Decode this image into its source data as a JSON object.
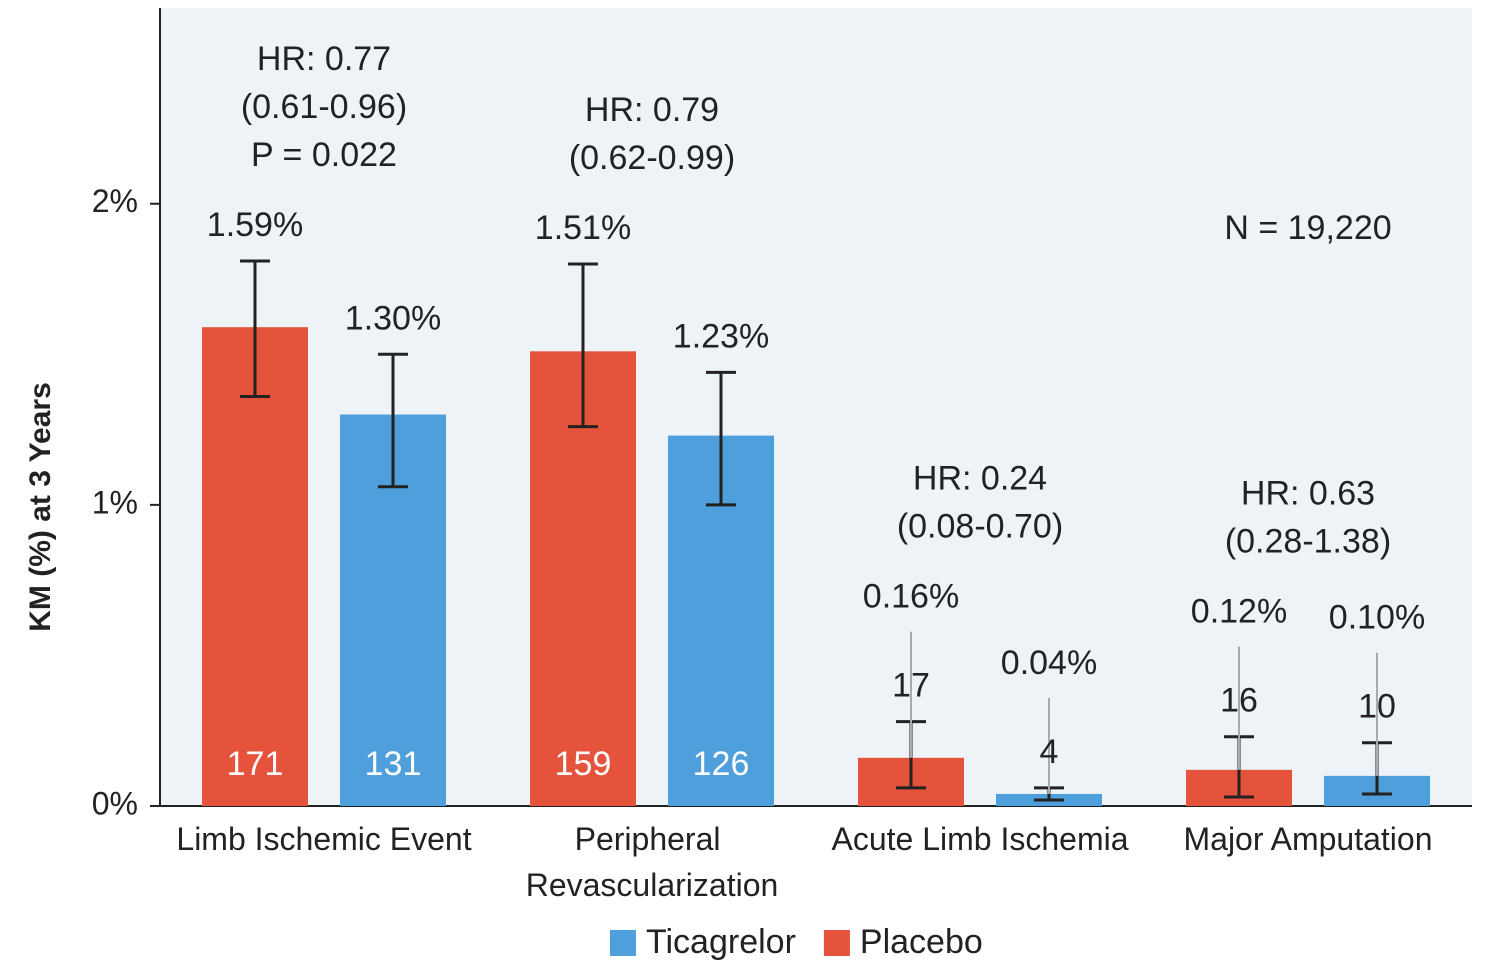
{
  "chart_data": {
    "type": "bar",
    "y_label": "KM (%) at 3 Years",
    "categories": [
      "Limb Ischemic Event",
      "Peripheral Revascularization",
      "Acute Limb Ischemia",
      "Major Amputation"
    ],
    "series": [
      {
        "name": "Placebo",
        "color": "#e5533d",
        "values": [
          1.59,
          1.51,
          0.16,
          0.12
        ],
        "value_labels": [
          "1.59%",
          "1.51%",
          "0.16%",
          "0.12%"
        ],
        "ci_low": [
          1.36,
          1.26,
          0.06,
          0.03
        ],
        "ci_high": [
          1.81,
          1.8,
          0.28,
          0.23
        ],
        "counts": [
          171,
          159,
          17,
          16
        ]
      },
      {
        "name": "Ticagrelor",
        "color": "#4f9fdc",
        "values": [
          1.3,
          1.23,
          0.04,
          0.1
        ],
        "value_labels": [
          "1.30%",
          "1.23%",
          "0.04%",
          "0.10%"
        ],
        "ci_low": [
          1.06,
          1.0,
          0.02,
          0.04
        ],
        "ci_high": [
          1.5,
          1.44,
          0.06,
          0.21
        ],
        "counts": [
          131,
          126,
          4,
          10
        ]
      }
    ],
    "hr_labels": [
      [
        "HR: 0.77",
        "(0.61-0.96)",
        "P = 0.022"
      ],
      [
        "HR: 0.79",
        "(0.62-0.99)"
      ],
      [
        "HR: 0.24",
        "(0.08-0.70)"
      ],
      [
        "HR: 0.63",
        "(0.28-1.38)"
      ]
    ],
    "note": "N = 19,220",
    "ylim": [
      0,
      2.65
    ],
    "yticks": [
      {
        "value": 0,
        "label": "0%"
      },
      {
        "value": 1,
        "label": "1%"
      },
      {
        "value": 2,
        "label": "2%"
      }
    ],
    "grid": false
  }
}
